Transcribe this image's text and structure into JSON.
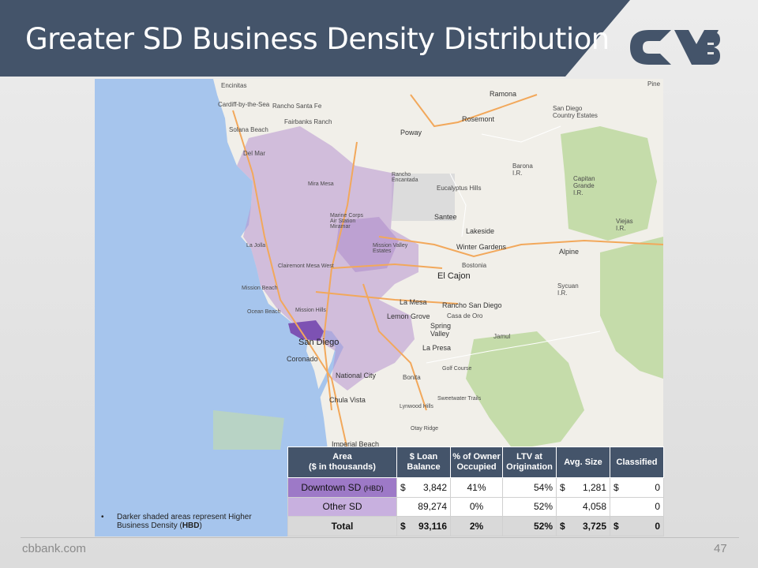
{
  "title": "Greater SD Business Density Distribution",
  "logo": {
    "name": "cvb-logo",
    "color": "#44546a"
  },
  "colors": {
    "header": "#44546a",
    "ocean": "#a6c5ed",
    "hbd": "#9d79c7",
    "other_sd": "#c8b0df",
    "density_overlay": "#b693cf",
    "parks": "#c5dcaa"
  },
  "map": {
    "places": [
      "Encinitas",
      "Cardiff-by-the-Sea",
      "Rancho Santa Fe",
      "Fairbanks Ranch",
      "Solana Beach",
      "Del Mar",
      "Ramona",
      "San Diego Country Estates",
      "Rosemont",
      "Poway",
      "Eucalyptus Hills",
      "Santee",
      "Lakeside",
      "Winter Gardens",
      "Bostonia",
      "El Cajon",
      "Alpine",
      "La Mesa",
      "Rancho San Diego",
      "Casa de Oro",
      "Lemon Grove",
      "Spring Valley",
      "Jamul",
      "La Presa",
      "San Diego",
      "Coronado",
      "National City",
      "Bonita",
      "Chula Vista",
      "Imperial Beach",
      "Pine",
      "Barona I.R.",
      "Capitan Grande I.R.",
      "Viejas I.R.",
      "Sycuan I.R.",
      "Marine Corps Air Station Miramar",
      "Mira Mesa",
      "La Jolla",
      "Clairemont Mesa West",
      "Mission Beach",
      "Ocean Beach",
      "Mission Hills",
      "Mission Valley Estates",
      "Rancho Encantada",
      "Golf Course",
      "Sweetwater Trails",
      "Lynwood Hills",
      "Otay Ridge"
    ]
  },
  "note": {
    "bullet": "•",
    "text_before": "Darker shaded areas represent Higher Business Density (",
    "text_bold": "HBD",
    "text_after": ")"
  },
  "table": {
    "headers": {
      "area": "Area\n($ in thousands)",
      "loan": "$ Loan Balance",
      "owner": "% of Owner Occupied",
      "ltv": "LTV at Origination",
      "avg": "Avg. Size",
      "classified": "Classified"
    },
    "rows": [
      {
        "area": "Downtown SD",
        "area_suffix": "(HBD)",
        "loan_cur": "$",
        "loan": "3,842",
        "owner": "41%",
        "ltv": "54%",
        "avg_cur": "$",
        "avg": "1,281",
        "class_cur": "$",
        "classified": "0"
      },
      {
        "area": "Other SD",
        "area_suffix": "",
        "loan_cur": "",
        "loan": "89,274",
        "owner": "0%",
        "ltv": "52%",
        "avg_cur": "",
        "avg": "4,058",
        "class_cur": "",
        "classified": "0"
      }
    ],
    "total": {
      "area": "Total",
      "loan_cur": "$",
      "loan": "93,116",
      "owner": "2%",
      "ltv": "52%",
      "avg_cur": "$",
      "avg": "3,725",
      "class_cur": "$",
      "classified": "0"
    }
  },
  "footer": {
    "site": "cbbank.com",
    "page": "47"
  }
}
